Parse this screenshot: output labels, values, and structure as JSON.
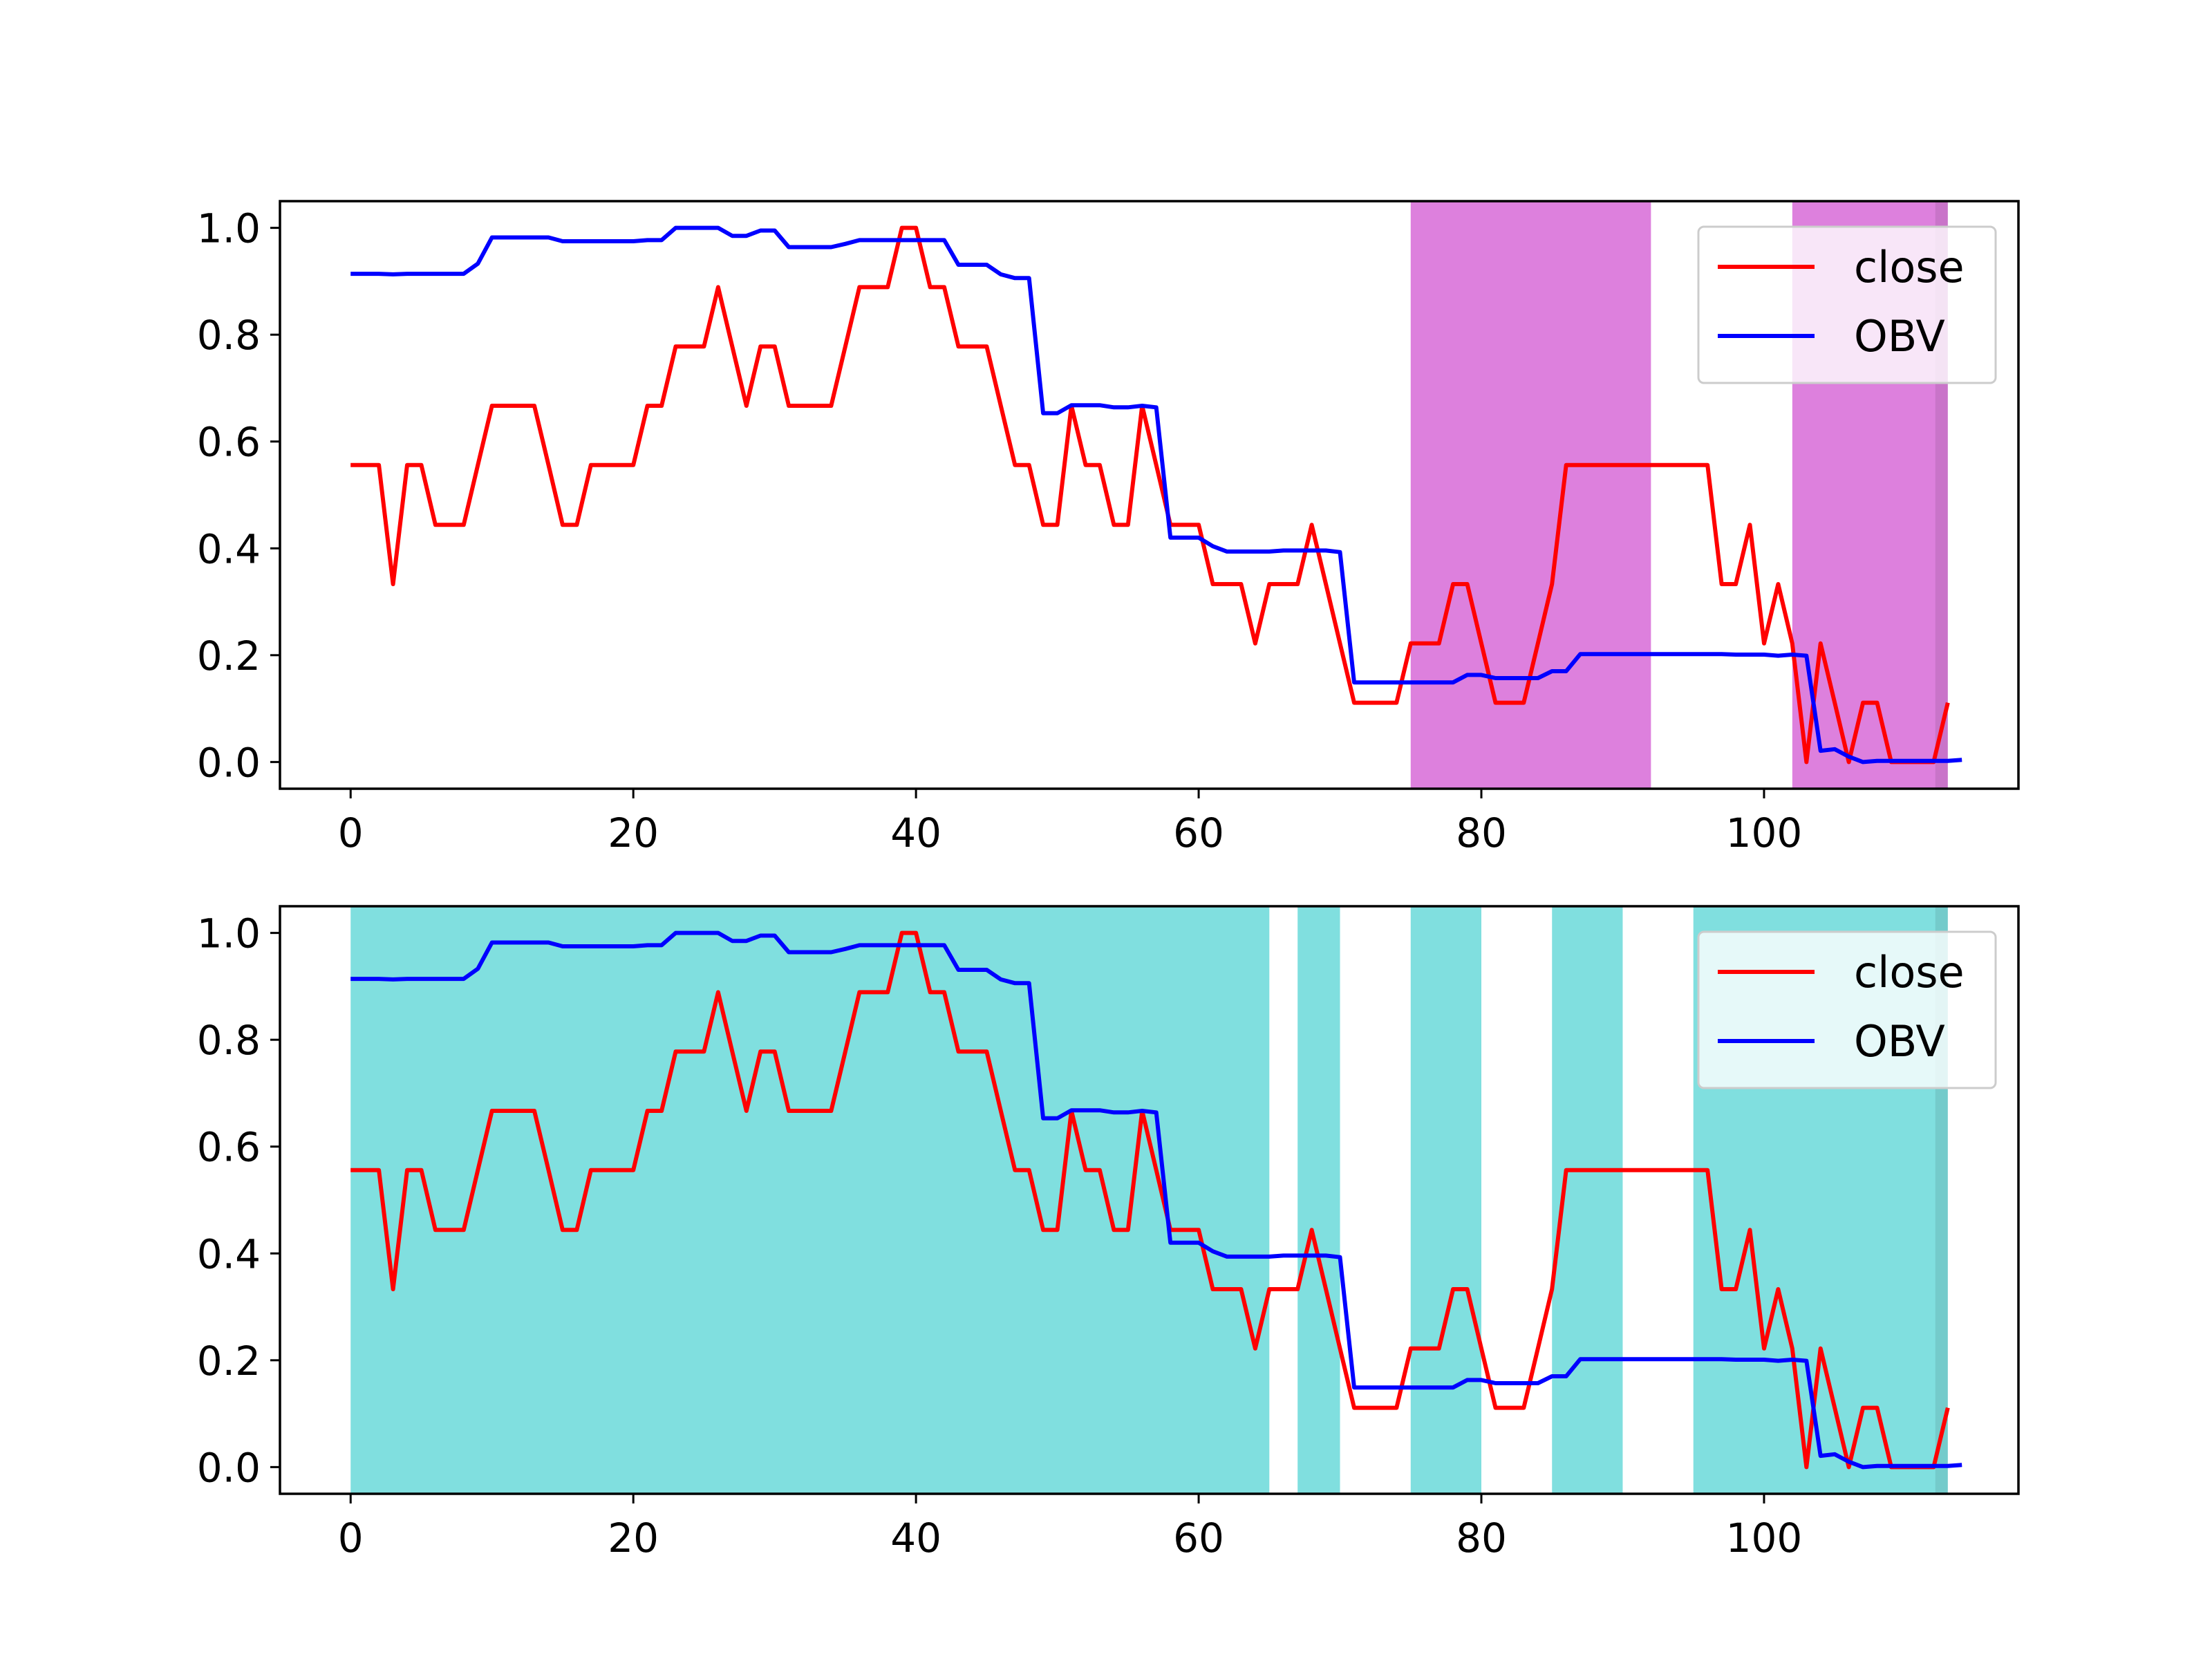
{
  "chart_data": [
    {
      "type": "line",
      "title": "",
      "xlabel": "",
      "ylabel": "",
      "xlim": [
        -5,
        118
      ],
      "ylim": [
        -0.05,
        1.05
      ],
      "xticks": [
        0,
        20,
        40,
        60,
        80,
        100
      ],
      "yticks": [
        0.0,
        0.2,
        0.4,
        0.6,
        0.8,
        1.0
      ],
      "grid": false,
      "legend_position": "top-right",
      "highlight_color": "#dd80dd",
      "highlight_ranges": [
        [
          75,
          92
        ],
        [
          102,
          113
        ]
      ],
      "series": [
        {
          "name": "close",
          "color": "#ff0000"
        },
        {
          "name": "OBV",
          "color": "#0000ff"
        }
      ]
    },
    {
      "type": "line",
      "title": "",
      "xlabel": "",
      "ylabel": "",
      "xlim": [
        -5,
        118
      ],
      "ylim": [
        -0.05,
        1.05
      ],
      "xticks": [
        0,
        20,
        40,
        60,
        80,
        100
      ],
      "yticks": [
        0.0,
        0.2,
        0.4,
        0.6,
        0.8,
        1.0
      ],
      "grid": false,
      "legend_position": "top-right",
      "highlight_color": "#80dfdf",
      "highlight_ranges": [
        [
          0,
          65
        ],
        [
          67,
          70
        ],
        [
          75,
          80
        ],
        [
          85,
          90
        ],
        [
          95,
          113
        ]
      ],
      "series": [
        {
          "name": "close",
          "color": "#ff0000"
        },
        {
          "name": "OBV",
          "color": "#0000ff"
        }
      ]
    }
  ],
  "series_values": {
    "close": [
      0.556,
      0.556,
      0.556,
      0.333,
      0.556,
      0.556,
      0.444,
      0.444,
      0.444,
      0.556,
      0.667,
      0.667,
      0.667,
      0.667,
      0.556,
      0.444,
      0.444,
      0.556,
      0.556,
      0.556,
      0.556,
      0.667,
      0.667,
      0.778,
      0.778,
      0.778,
      0.889,
      0.778,
      0.667,
      0.778,
      0.778,
      0.667,
      0.667,
      0.667,
      0.667,
      0.778,
      0.889,
      0.889,
      0.889,
      1.0,
      1.0,
      0.889,
      0.889,
      0.778,
      0.778,
      0.778,
      0.667,
      0.556,
      0.556,
      0.444,
      0.444,
      0.667,
      0.556,
      0.556,
      0.444,
      0.444,
      0.667,
      0.556,
      0.444,
      0.444,
      0.444,
      0.333,
      0.333,
      0.333,
      0.222,
      0.333,
      0.333,
      0.333,
      0.444,
      0.333,
      0.222,
      0.111,
      0.111,
      0.111,
      0.111,
      0.222,
      0.222,
      0.222,
      0.333,
      0.333,
      0.222,
      0.111,
      0.111,
      0.111,
      0.222,
      0.333,
      0.556,
      0.556,
      0.556,
      0.556,
      0.556,
      0.556,
      0.556,
      0.556,
      0.556,
      0.556,
      0.556,
      0.333,
      0.333,
      0.444,
      0.222,
      0.333,
      0.222,
      0.0,
      0.222,
      0.111,
      0.0,
      0.111,
      0.111,
      0.0,
      0.0,
      0.0,
      0.0,
      0.111
    ],
    "OBV": [
      0.914,
      0.914,
      0.914,
      0.913,
      0.914,
      0.914,
      0.914,
      0.914,
      0.914,
      0.933,
      0.982,
      0.982,
      0.982,
      0.982,
      0.982,
      0.975,
      0.975,
      0.975,
      0.975,
      0.975,
      0.975,
      0.977,
      0.977,
      1.0,
      1.0,
      1.0,
      1.0,
      0.985,
      0.985,
      0.995,
      0.995,
      0.964,
      0.964,
      0.964,
      0.964,
      0.97,
      0.977,
      0.977,
      0.977,
      0.977,
      0.977,
      0.977,
      0.977,
      0.931,
      0.931,
      0.931,
      0.913,
      0.906,
      0.906,
      0.653,
      0.653,
      0.668,
      0.668,
      0.668,
      0.664,
      0.664,
      0.667,
      0.664,
      0.42,
      0.42,
      0.42,
      0.404,
      0.394,
      0.394,
      0.394,
      0.394,
      0.396,
      0.396,
      0.396,
      0.396,
      0.393,
      0.149,
      0.149,
      0.149,
      0.149,
      0.149,
      0.149,
      0.149,
      0.149,
      0.163,
      0.163,
      0.157,
      0.157,
      0.157,
      0.157,
      0.17,
      0.17,
      0.202,
      0.202,
      0.202,
      0.202,
      0.202,
      0.202,
      0.202,
      0.202,
      0.202,
      0.202,
      0.202,
      0.201,
      0.201,
      0.201,
      0.199,
      0.201,
      0.199,
      0.021,
      0.024,
      0.01,
      0.0,
      0.002,
      0.002,
      0.002,
      0.002,
      0.002,
      0.002,
      0.004
    ]
  }
}
